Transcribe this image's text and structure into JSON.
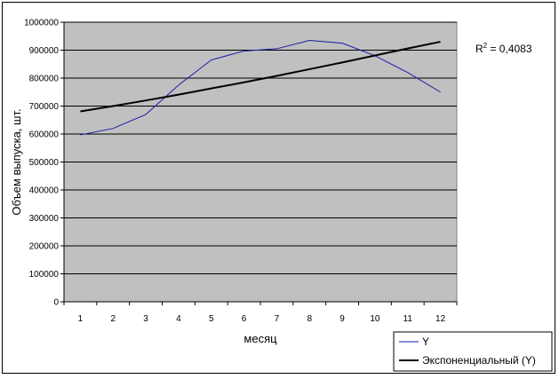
{
  "chart_data": {
    "type": "line",
    "title": "",
    "xlabel": "месяц",
    "ylabel": "Объем выпуска, шт.",
    "categories": [
      "1",
      "2",
      "3",
      "4",
      "5",
      "6",
      "7",
      "8",
      "9",
      "10",
      "11",
      "12"
    ],
    "ylim": [
      0,
      1000000
    ],
    "yticks": [
      "0",
      "100000",
      "200000",
      "300000",
      "400000",
      "500000",
      "600000",
      "700000",
      "800000",
      "900000",
      "1000000"
    ],
    "grid": true,
    "legend_position": "bottom-right",
    "r2_label": "R",
    "r2_sup": "2",
    "r2_value": " = 0,4083",
    "series": [
      {
        "name": "Y",
        "color": "#1a1aa6",
        "values": [
          597000,
          620000,
          670000,
          775000,
          865000,
          897000,
          905000,
          935000,
          925000,
          880000,
          820000,
          750000
        ]
      },
      {
        "name": "Экспоненциальный (Y)",
        "color": "#000000",
        "values": [
          681000,
          700000,
          720000,
          741000,
          763000,
          785000,
          808000,
          832000,
          856000,
          881000,
          906000,
          930000
        ]
      }
    ],
    "plot_background": "#c0c0c0"
  }
}
